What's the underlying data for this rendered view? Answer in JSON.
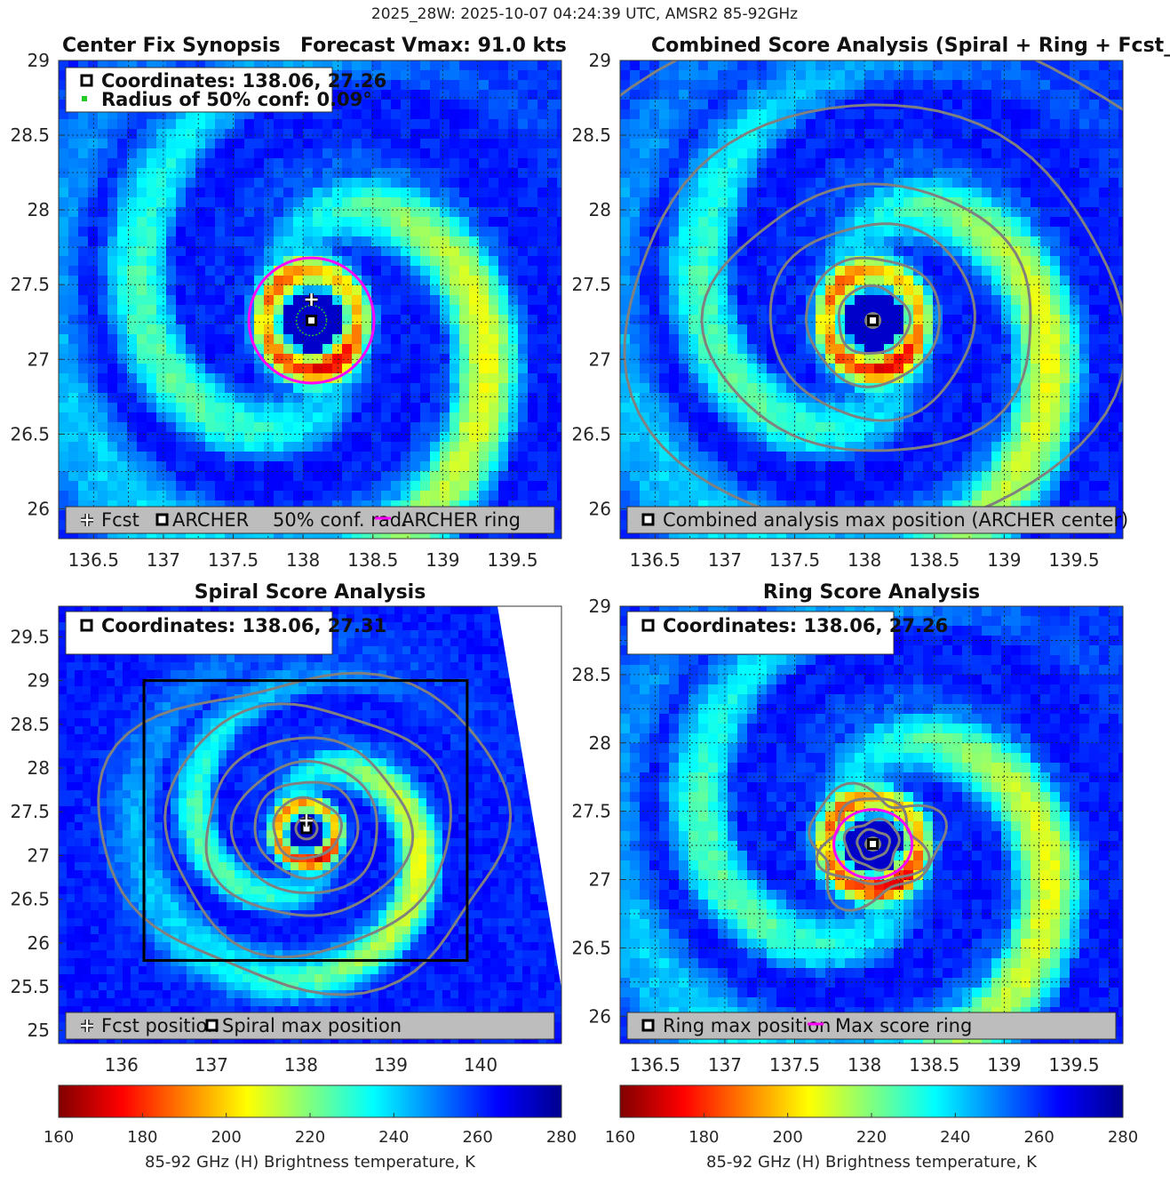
{
  "figure_title": "2025_28W: 2025-10-07 04:24:39 UTC, AMSR2 85-92GHz",
  "colorbar": {
    "ticks": [
      "160",
      "180",
      "200",
      "220",
      "240",
      "260",
      "280"
    ],
    "label": "85-92 GHz (H) Brightness temperature, K",
    "range": [
      160,
      280
    ]
  },
  "panels": {
    "synopsis": {
      "title_left": "Center Fix Synopsis",
      "title_right": "Forecast Vmax: 91.0 kts",
      "info_line1": "Coordinates: 138.06, 27.26",
      "info_line2": "Radius of 50% conf: 0.09°",
      "legend": [
        "Fcst",
        "ARCHER",
        "50% conf. rad.",
        "ARCHER ring"
      ],
      "xticks": [
        "136.5",
        "137",
        "137.5",
        "138",
        "138.5",
        "139",
        "139.5"
      ],
      "yticks": [
        "29",
        "28.5",
        "28",
        "27.5",
        "27",
        "26.5",
        "26"
      ]
    },
    "combined": {
      "title": "Combined Score Analysis (Spiral + Ring + Fcst_Pe",
      "legend": [
        "Combined analysis max position (ARCHER center)"
      ],
      "xticks": [
        "136.5",
        "137",
        "137.5",
        "138",
        "138.5",
        "139",
        "139.5"
      ],
      "yticks": [
        "29",
        "28.5",
        "28",
        "27.5",
        "27",
        "26.5",
        "26"
      ]
    },
    "spiral": {
      "title": "Spiral Score Analysis",
      "info_line1": "Coordinates: 138.06, 27.31",
      "legend": [
        "Fcst position",
        "Spiral max position"
      ],
      "xticks": [
        "136",
        "137",
        "138",
        "139",
        "140"
      ],
      "yticks": [
        "29.5",
        "29",
        "28.5",
        "28",
        "27.5",
        "27",
        "26.5",
        "26",
        "25.5",
        "25"
      ]
    },
    "ring": {
      "title": "Ring Score Analysis",
      "info_line1": "Coordinates: 138.06, 27.26",
      "legend": [
        "Ring max position",
        "Max score ring"
      ],
      "xticks": [
        "136.5",
        "137",
        "137.5",
        "138",
        "138.5",
        "139",
        "139.5"
      ],
      "yticks": [
        "29",
        "28.5",
        "28",
        "27.5",
        "27",
        "26.5",
        "26"
      ]
    }
  },
  "chart_data": [
    {
      "type": "heatmap",
      "name": "Center Fix Synopsis",
      "title": "Center Fix Synopsis     Forecast Vmax: 91.0 kts",
      "x_range": [
        136.25,
        139.85
      ],
      "y_range": [
        25.8,
        29.0
      ],
      "xticks": [
        136.5,
        137,
        137.5,
        138,
        138.5,
        139,
        139.5
      ],
      "yticks": [
        26,
        26.5,
        27,
        27.5,
        28,
        28.5,
        29
      ],
      "grid": true,
      "center": {
        "lon": 138.06,
        "lat": 27.26
      },
      "forecast": {
        "lon": 138.06,
        "lat": 27.4
      },
      "conf_radius_deg": 0.09,
      "ring_radius_deg": 0.28,
      "colorbar_range": [
        160,
        280
      ]
    },
    {
      "type": "heatmap",
      "name": "Combined Score Analysis",
      "x_range": [
        136.25,
        139.85
      ],
      "y_range": [
        25.8,
        29.0
      ],
      "center": {
        "lon": 138.06,
        "lat": 27.26
      },
      "contours": "combined score"
    },
    {
      "type": "heatmap",
      "name": "Spiral Score Analysis",
      "x_range": [
        135.3,
        140.9
      ],
      "y_range": [
        24.85,
        29.85
      ],
      "xticks": [
        136,
        137,
        138,
        139,
        140
      ],
      "yticks": [
        25,
        25.5,
        26,
        26.5,
        27,
        27.5,
        28,
        28.5,
        29,
        29.5
      ],
      "center": {
        "lon": 138.06,
        "lat": 27.31
      },
      "forecast": {
        "lon": 138.06,
        "lat": 27.4
      },
      "box": {
        "x": [
          136.25,
          139.85
        ],
        "y": [
          25.8,
          29.0
        ]
      }
    },
    {
      "type": "heatmap",
      "name": "Ring Score Analysis",
      "x_range": [
        136.25,
        139.85
      ],
      "y_range": [
        25.8,
        29.0
      ],
      "center": {
        "lon": 138.06,
        "lat": 27.26
      },
      "ring_radius_deg": 0.28
    }
  ]
}
